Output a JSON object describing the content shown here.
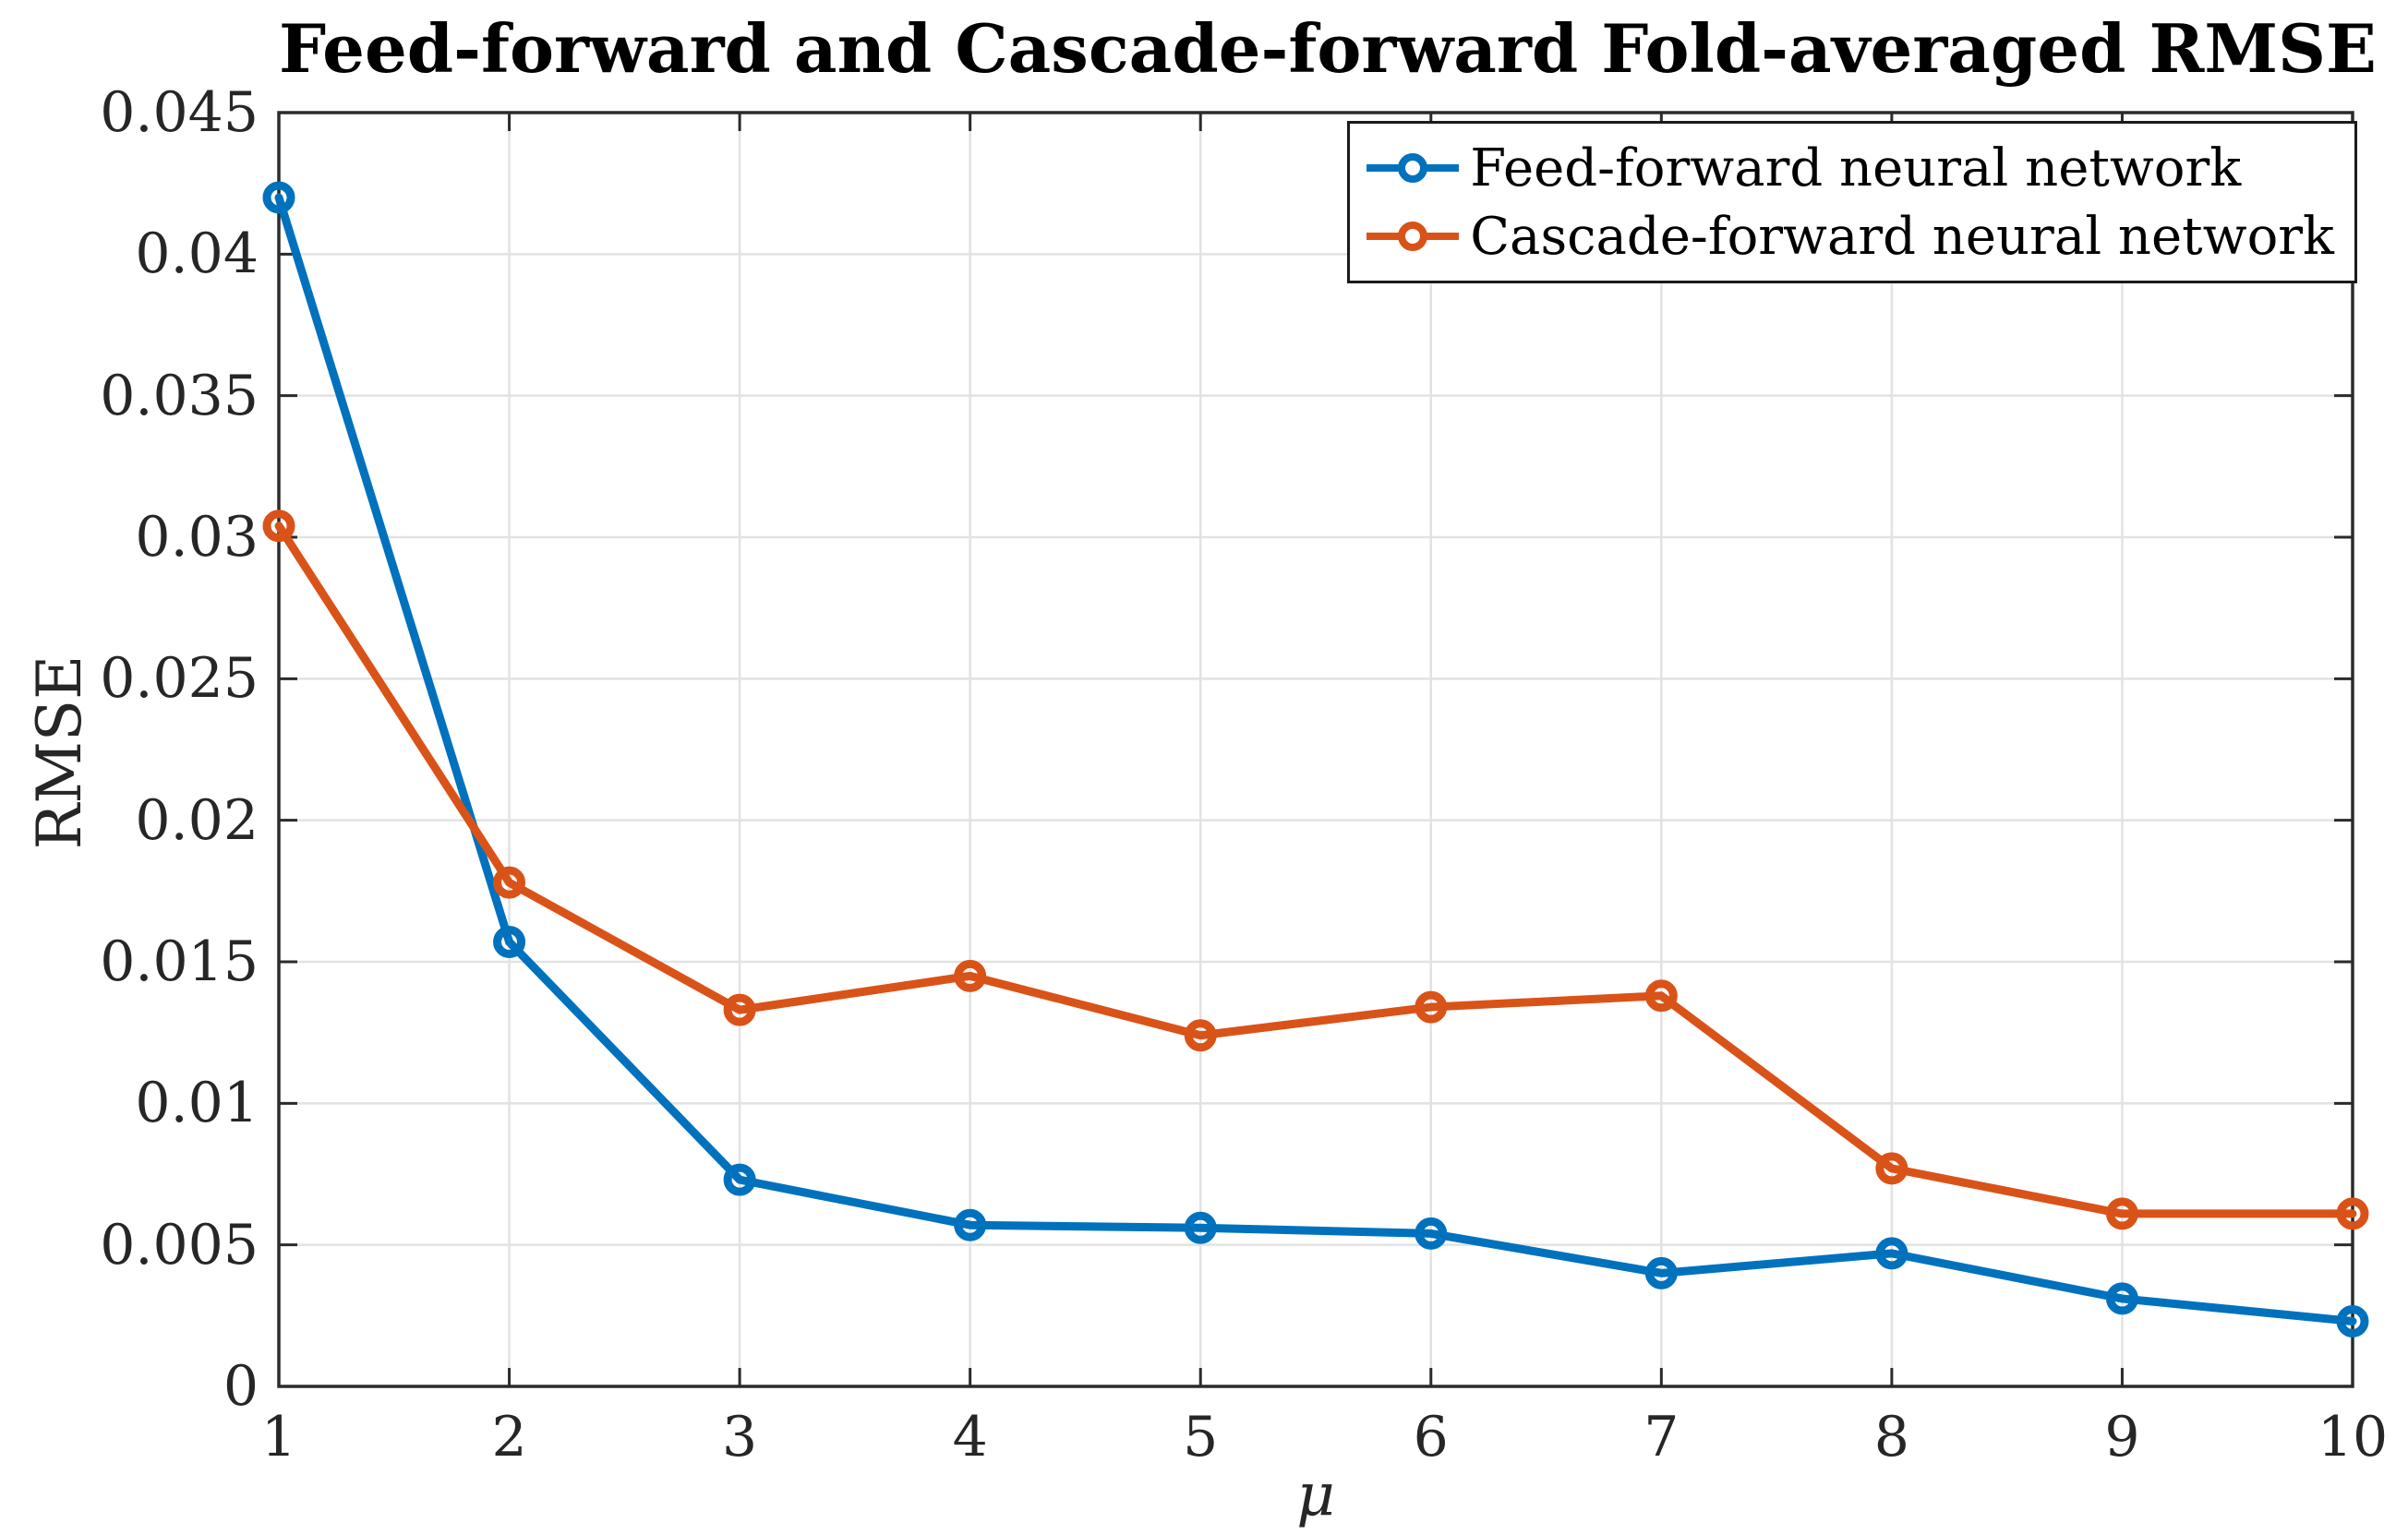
{
  "chart_data": {
    "type": "line",
    "title": "Feed-forward and Cascade-forward Fold-averaged RMSE",
    "xlabel": "μ",
    "ylabel": "RMSE",
    "x": [
      1,
      2,
      3,
      4,
      5,
      6,
      7,
      8,
      9,
      10
    ],
    "series": [
      {
        "name": "Feed-forward neural network",
        "color": "#0072BD",
        "values": [
          0.042,
          0.0157,
          0.0073,
          0.0057,
          0.0056,
          0.0054,
          0.004,
          0.0047,
          0.0031,
          0.0023
        ]
      },
      {
        "name": "Cascade-forward neural network",
        "color": "#D95319",
        "values": [
          0.0304,
          0.0178,
          0.0133,
          0.0145,
          0.0124,
          0.0134,
          0.0138,
          0.0077,
          0.0061,
          0.0061
        ]
      }
    ],
    "xlim": [
      1,
      10
    ],
    "ylim": [
      0,
      0.045
    ],
    "x_ticks": [
      1,
      2,
      3,
      4,
      5,
      6,
      7,
      8,
      9,
      10
    ],
    "y_ticks": [
      0,
      0.005,
      0.01,
      0.015,
      0.02,
      0.025,
      0.03,
      0.035,
      0.04,
      0.045
    ],
    "y_tick_labels": [
      "0",
      "0.005",
      "0.01",
      "0.015",
      "0.02",
      "0.025",
      "0.03",
      "0.035",
      "0.04",
      "0.045"
    ],
    "grid": true,
    "legend_position": "top-right",
    "marker": "circle-open"
  },
  "colors": {
    "grid": "#E2E2E2",
    "axis": "#2B2B2B",
    "background": "#FFFFFF",
    "legend_border": "#1A1A1A",
    "title_text": "#000000"
  }
}
